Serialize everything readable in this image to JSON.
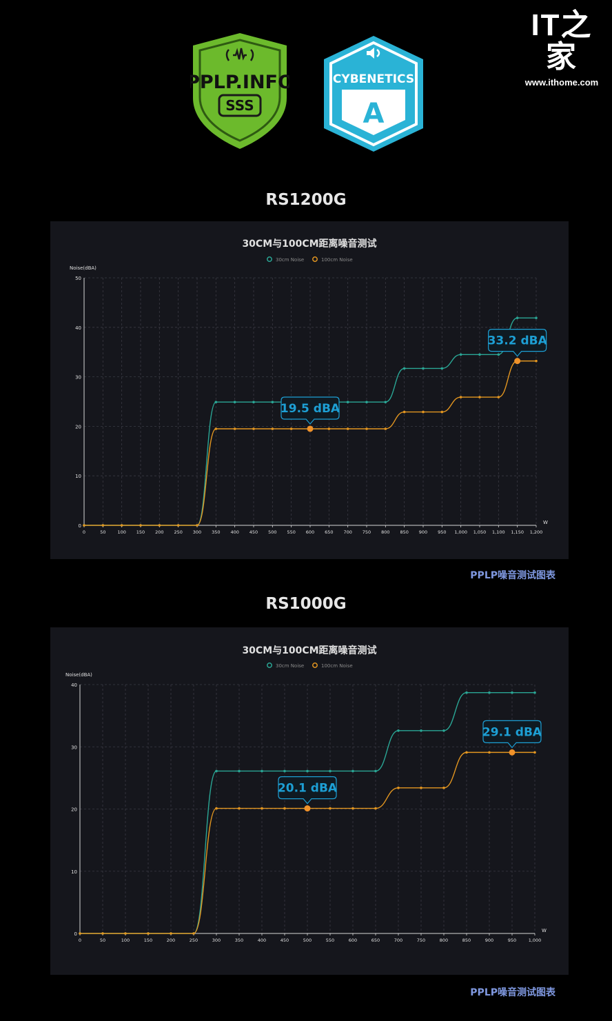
{
  "watermark": {
    "logo_text": "IT之家",
    "url": "www.ithome.com"
  },
  "badges": {
    "pplp": {
      "text": "PPLP.INFO",
      "grade": "SSS",
      "color": "#6cba2c"
    },
    "cybenetics": {
      "text": "CYBENETICS",
      "grade": "A",
      "color": "#2ab3d6"
    }
  },
  "sections": [
    {
      "title": "RS1200G",
      "caption": "PPLP噪音测试图表"
    },
    {
      "title": "RS1000G",
      "caption": "PPLP噪音测试图表"
    }
  ],
  "colors": {
    "series_30cm": "#2aa695",
    "series_100cm": "#e39620",
    "callout": "#1d9fd4",
    "grid": "#3a3b44",
    "axis": "#d8d8d8"
  },
  "chart_data": [
    {
      "type": "line",
      "title": "30CM与100CM距离噪音测试",
      "ylabel": "Noise(dBA)",
      "xlabel": "W",
      "ylim": [
        0,
        50
      ],
      "yticks": [
        0,
        10,
        20,
        30,
        40,
        50
      ],
      "xticks": [
        "0",
        "50",
        "100",
        "150",
        "200",
        "250",
        "300",
        "350",
        "400",
        "450",
        "500",
        "550",
        "600",
        "650",
        "700",
        "750",
        "800",
        "850",
        "900",
        "950",
        "1,000",
        "1,050",
        "1,100",
        "1,150",
        "1,200"
      ],
      "x": [
        0,
        50,
        100,
        150,
        200,
        250,
        300,
        350,
        400,
        450,
        500,
        550,
        600,
        650,
        700,
        750,
        800,
        850,
        900,
        950,
        1000,
        1050,
        1100,
        1150,
        1200
      ],
      "series": [
        {
          "name": "30cm Noise",
          "values": [
            0,
            0,
            0,
            0,
            0,
            0,
            0,
            24.9,
            24.9,
            24.9,
            24.9,
            24.9,
            24.9,
            24.9,
            24.9,
            24.9,
            24.9,
            31.7,
            31.7,
            31.7,
            34.5,
            34.5,
            34.5,
            41.9,
            41.9
          ]
        },
        {
          "name": "100cm Noise",
          "values": [
            0,
            0,
            0,
            0,
            0,
            0,
            0,
            19.5,
            19.5,
            19.5,
            19.5,
            19.5,
            19.5,
            19.5,
            19.5,
            19.5,
            19.5,
            22.9,
            22.9,
            22.9,
            25.9,
            25.9,
            25.9,
            33.2,
            33.2
          ]
        }
      ],
      "annotations": [
        {
          "x": 600,
          "y": 19.5,
          "label": "19.5 dBA"
        },
        {
          "x": 1150,
          "y": 33.2,
          "label": "33.2 dBA"
        }
      ],
      "grid": true,
      "legend": "top-center"
    },
    {
      "type": "line",
      "title": "30CM与100CM距离噪音测试",
      "ylabel": "Noise(dBA)",
      "xlabel": "W",
      "ylim": [
        0,
        40
      ],
      "yticks": [
        0,
        10,
        20,
        30,
        40
      ],
      "xticks": [
        "0",
        "50",
        "100",
        "150",
        "200",
        "250",
        "300",
        "350",
        "400",
        "450",
        "500",
        "550",
        "600",
        "650",
        "700",
        "750",
        "800",
        "850",
        "900",
        "950",
        "1,000"
      ],
      "x": [
        0,
        50,
        100,
        150,
        200,
        250,
        300,
        350,
        400,
        450,
        500,
        550,
        600,
        650,
        700,
        750,
        800,
        850,
        900,
        950,
        1000
      ],
      "series": [
        {
          "name": "30cm Noise",
          "values": [
            0,
            0,
            0,
            0,
            0,
            0,
            26.1,
            26.1,
            26.1,
            26.1,
            26.1,
            26.1,
            26.1,
            26.1,
            32.6,
            32.6,
            32.6,
            38.7,
            38.7,
            38.7,
            38.7
          ]
        },
        {
          "name": "100cm Noise",
          "values": [
            0,
            0,
            0,
            0,
            0,
            0,
            20.1,
            20.1,
            20.1,
            20.1,
            20.1,
            20.1,
            20.1,
            20.1,
            23.4,
            23.4,
            23.4,
            29.1,
            29.1,
            29.1,
            29.1
          ]
        }
      ],
      "annotations": [
        {
          "x": 500,
          "y": 20.1,
          "label": "20.1 dBA"
        },
        {
          "x": 950,
          "y": 29.1,
          "label": "29.1 dBA"
        }
      ],
      "grid": true,
      "legend": "top-center"
    }
  ]
}
